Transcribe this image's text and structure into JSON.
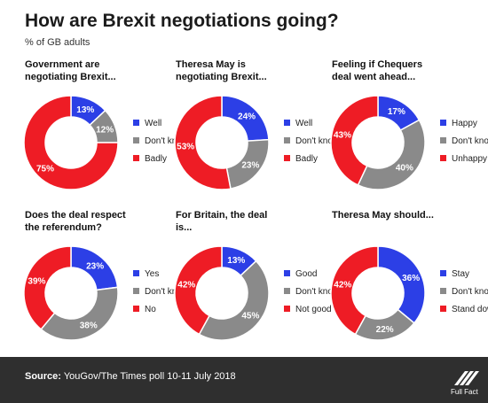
{
  "title": "How are Brexit negotiations going?",
  "subtitle": "% of GB adults",
  "colors": {
    "blue": "#2c3fe6",
    "grey": "#8a8a8a",
    "red": "#ee1c25",
    "label_on_slice": "#ffffff"
  },
  "footer": {
    "source_label": "Source:",
    "source_text": " YouGov/The Times poll 10-11 July 2018",
    "logo_text": "Full Fact"
  },
  "chart_data": [
    {
      "type": "pie",
      "title": "Government are\nnegotiating Brexit...",
      "labels": [
        "Well",
        "Don't know",
        "Badly"
      ],
      "values": [
        13,
        12,
        75
      ],
      "value_labels": [
        "13%",
        "12%",
        "75%"
      ],
      "colors": [
        "#2c3fe6",
        "#8a8a8a",
        "#ee1c25"
      ]
    },
    {
      "type": "pie",
      "title": "Theresa May is\nnegotiating Brexit...",
      "labels": [
        "Well",
        "Don't know",
        "Badly"
      ],
      "values": [
        24,
        23,
        53
      ],
      "value_labels": [
        "24%",
        "23%",
        "53%"
      ],
      "colors": [
        "#2c3fe6",
        "#8a8a8a",
        "#ee1c25"
      ]
    },
    {
      "type": "pie",
      "title": "Feeling if Chequers\ndeal went ahead...",
      "labels": [
        "Happy",
        "Don't know",
        "Unhappy"
      ],
      "values": [
        17,
        40,
        43
      ],
      "value_labels": [
        "17%",
        "40%",
        "43%"
      ],
      "colors": [
        "#2c3fe6",
        "#8a8a8a",
        "#ee1c25"
      ]
    },
    {
      "type": "pie",
      "title": "Does the deal respect\nthe referendum?",
      "labels": [
        "Yes",
        "Don't know",
        "No"
      ],
      "values": [
        23,
        38,
        39
      ],
      "value_labels": [
        "23%",
        "38%",
        "39%"
      ],
      "colors": [
        "#2c3fe6",
        "#8a8a8a",
        "#ee1c25"
      ]
    },
    {
      "type": "pie",
      "title": "For Britain, the deal\nis...",
      "labels": [
        "Good",
        "Don't know",
        "Not good"
      ],
      "values": [
        13,
        45,
        42
      ],
      "value_labels": [
        "13%",
        "45%",
        "42%"
      ],
      "colors": [
        "#2c3fe6",
        "#8a8a8a",
        "#ee1c25"
      ]
    },
    {
      "type": "pie",
      "title": "Theresa May should...",
      "labels": [
        "Stay",
        "Don't know",
        "Stand down"
      ],
      "values": [
        36,
        22,
        42
      ],
      "value_labels": [
        "36%",
        "22%",
        "42%"
      ],
      "colors": [
        "#2c3fe6",
        "#8a8a8a",
        "#ee1c25"
      ]
    }
  ]
}
